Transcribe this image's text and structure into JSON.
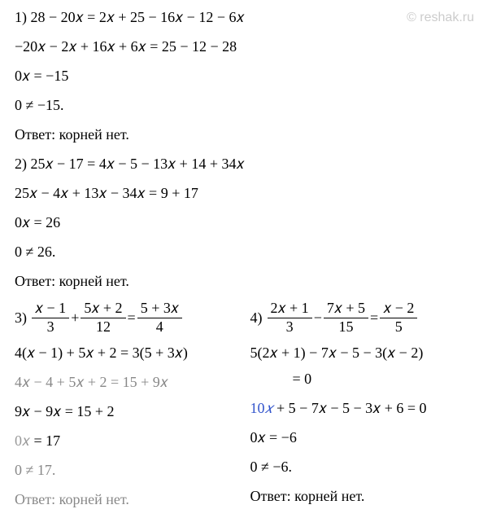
{
  "watermark": "© reshak.ru",
  "p1": {
    "l1": "1) 28 − 20𝑥 = 2𝑥 + 25 − 16𝑥 − 12 − 6𝑥",
    "l2": "−20𝑥 − 2𝑥 + 16𝑥 + 6𝑥 = 25 − 12 − 28",
    "l3": "0𝑥 = −15",
    "l4": "0 ≠ −15.",
    "ans": "Ответ: корней нет."
  },
  "p2": {
    "l1": "2) 25𝑥 − 17 = 4𝑥 − 5 − 13𝑥 + 14 + 34𝑥",
    "l2": "25𝑥 − 4𝑥 + 13𝑥 − 34𝑥 = 9 + 17",
    "l3": "0𝑥 = 26",
    "l4": "0 ≠ 26.",
    "ans": "Ответ: корней нет."
  },
  "p3": {
    "num": "3) ",
    "f1n": "𝑥 − 1",
    "f1d": "3",
    "plus": " + ",
    "f2n": "5𝑥 + 2",
    "f2d": "12",
    "eq": " = ",
    "f3n": "5 + 3𝑥",
    "f3d": "4",
    "l2": "4(𝑥 − 1) + 5𝑥 + 2 = 3(5 + 3𝑥)",
    "l3": "4𝑥 − 4 + 5𝑥 + 2 = 15 + 9𝑥",
    "l4": "9𝑥 − 9𝑥 = 15 + 2",
    "l5a": "0𝑥 ",
    "l5b": "= 17",
    "l6": "0 ≠ 17.",
    "ans": "Ответ: корней нет."
  },
  "p4": {
    "num": "4) ",
    "f1n": "2𝑥 + 1",
    "f1d": "3",
    "minus": " − ",
    "f2n": "7𝑥 + 5",
    "f2d": "15",
    "eq": " = ",
    "f3n": "𝑥 − 2",
    "f3d": "5",
    "l2": "5(2𝑥 + 1) − 7𝑥 − 5 − 3(𝑥 − 2)",
    "l2b": "= 0",
    "l3a": "10",
    "l3b": "𝑥",
    "l3c": " + 5 − 7𝑥 − 5 − 3𝑥 + 6 = 0",
    "l4": "0𝑥 = −6",
    "l5": "0 ≠ −6.",
    "ans": "Ответ: корней нет."
  }
}
